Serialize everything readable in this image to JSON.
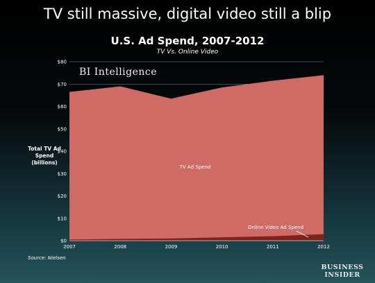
{
  "headline": "TV still massive, digital video still a blip",
  "chart_data": {
    "type": "area",
    "title": "U.S. Ad Spend, 2007-2012",
    "subtitle": "TV Vs. Online Video",
    "ylabel": "Total TV Ad Spend (billions)",
    "xlabel": "",
    "x": [
      "2007",
      "2008",
      "2009",
      "2010",
      "2011",
      "2012"
    ],
    "yticks": [
      "$0",
      "$10",
      "$20",
      "$30",
      "$40",
      "$50",
      "$60",
      "$70",
      "$80"
    ],
    "ylim": [
      0,
      80
    ],
    "series": [
      {
        "name": "TV Ad Spend",
        "values": [
          66.5,
          69,
          63.5,
          68.5,
          71.5,
          74
        ],
        "color": "#d06a64"
      },
      {
        "name": "Online Video Ad Spend",
        "values": [
          0.5,
          0.8,
          1.0,
          1.5,
          2.0,
          2.9
        ],
        "color": "#7c2320"
      }
    ],
    "grid": true,
    "legend": "inline labels"
  },
  "source": "Source: Nielsen",
  "watermark": "BI Intelligence",
  "logo": {
    "line1": "BUSINESS",
    "line2": "INSIDER"
  }
}
